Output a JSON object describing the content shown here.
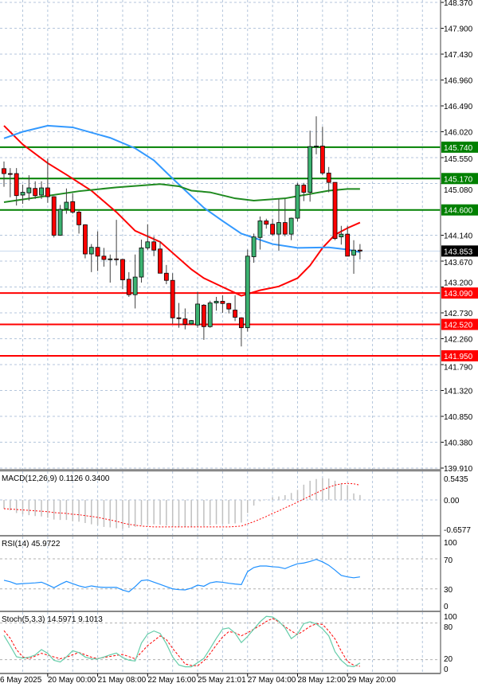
{
  "chart_data": [
    {
      "type": "candlestick",
      "panel": "price",
      "ylim": [
        139.91,
        148.37
      ],
      "grid": true,
      "price_ticks": [
        "148.370",
        "147.900",
        "147.430",
        "146.960",
        "146.490",
        "146.020",
        "145.550",
        "145.080",
        "144.140",
        "143.670",
        "143.200",
        "142.730",
        "142.260",
        "141.790",
        "141.320",
        "140.850",
        "140.380",
        "139.910"
      ],
      "candles": [
        [
          145.35,
          145.48,
          145.02,
          145.26
        ],
        [
          145.26,
          145.36,
          144.83,
          145.25
        ],
        [
          145.26,
          145.36,
          144.68,
          144.86
        ],
        [
          144.87,
          145.06,
          144.71,
          144.92
        ],
        [
          144.91,
          145.23,
          144.77,
          145.0
        ],
        [
          144.99,
          145.12,
          144.8,
          144.86
        ],
        [
          144.87,
          145.12,
          144.8,
          145.0
        ],
        [
          145.0,
          145.53,
          144.73,
          144.84
        ],
        [
          144.84,
          144.85,
          144.1,
          144.14
        ],
        [
          144.14,
          144.69,
          144.13,
          144.61
        ],
        [
          144.62,
          144.99,
          144.53,
          144.74
        ],
        [
          144.75,
          144.9,
          144.53,
          144.56
        ],
        [
          144.56,
          144.61,
          144.17,
          144.33
        ],
        [
          144.33,
          144.34,
          143.72,
          143.8
        ],
        [
          143.8,
          143.98,
          143.47,
          143.92
        ],
        [
          143.92,
          144.21,
          143.49,
          143.76
        ],
        [
          143.76,
          143.91,
          143.57,
          143.7
        ],
        [
          143.7,
          143.79,
          143.28,
          143.71
        ],
        [
          143.71,
          144.42,
          143.59,
          143.7
        ],
        [
          143.7,
          143.71,
          143.16,
          143.33
        ],
        [
          143.34,
          143.47,
          143.02,
          143.06
        ],
        [
          143.06,
          143.79,
          142.81,
          143.38
        ],
        [
          143.38,
          144.06,
          143.28,
          143.91
        ],
        [
          143.91,
          144.34,
          143.87,
          144.02
        ],
        [
          144.02,
          144.12,
          143.76,
          143.87
        ],
        [
          143.89,
          144.03,
          143.45,
          143.45
        ],
        [
          143.45,
          143.6,
          143.25,
          143.32
        ],
        [
          143.32,
          143.45,
          142.53,
          142.64
        ],
        [
          142.64,
          142.91,
          142.46,
          142.63
        ],
        [
          142.62,
          142.81,
          142.43,
          142.52
        ],
        [
          142.53,
          142.6,
          142.51,
          142.59
        ],
        [
          142.51,
          143.11,
          142.46,
          142.89
        ],
        [
          142.87,
          142.89,
          142.24,
          142.48
        ],
        [
          142.48,
          142.95,
          142.46,
          142.91
        ],
        [
          142.91,
          143.02,
          142.77,
          142.94
        ],
        [
          142.94,
          143.05,
          142.73,
          142.9
        ],
        [
          142.9,
          142.91,
          142.72,
          142.8
        ],
        [
          142.78,
          143.05,
          142.58,
          142.65
        ],
        [
          142.64,
          142.65,
          142.12,
          142.46
        ],
        [
          142.46,
          143.88,
          142.39,
          143.76
        ],
        [
          143.75,
          144.17,
          143.64,
          144.11
        ],
        [
          144.1,
          144.48,
          143.88,
          144.4
        ],
        [
          144.4,
          144.44,
          144.26,
          144.34
        ],
        [
          144.34,
          144.44,
          144.13,
          144.16
        ],
        [
          144.16,
          144.8,
          143.86,
          144.37
        ],
        [
          144.37,
          144.8,
          144.12,
          144.16
        ],
        [
          144.16,
          144.46,
          144.05,
          144.45
        ],
        [
          144.45,
          145.09,
          144.39,
          145.05
        ],
        [
          145.05,
          145.09,
          144.76,
          144.92
        ],
        [
          144.92,
          146.04,
          144.75,
          145.75
        ],
        [
          145.75,
          146.3,
          145.61,
          145.76
        ],
        [
          145.76,
          146.11,
          145.23,
          145.27
        ],
        [
          145.27,
          145.38,
          144.92,
          145.1
        ],
        [
          145.1,
          145.1,
          144.05,
          144.08
        ],
        [
          144.11,
          144.31,
          143.97,
          144.16
        ],
        [
          144.16,
          144.31,
          143.76,
          143.76
        ],
        [
          143.78,
          144.05,
          143.44,
          143.87
        ],
        [
          143.87,
          143.98,
          143.7,
          143.853
        ]
      ],
      "moving_averages": [
        {
          "color": "#ff0000",
          "points": [
            [
              0,
              146.13
            ],
            [
              3,
              145.79
            ],
            [
              7,
              145.45
            ],
            [
              10,
              145.24
            ],
            [
              14,
              144.95
            ],
            [
              18,
              144.56
            ],
            [
              21,
              144.22
            ],
            [
              25,
              144.02
            ],
            [
              30,
              143.52
            ],
            [
              32,
              143.36
            ],
            [
              35,
              143.2
            ],
            [
              38,
              143.04
            ],
            [
              41,
              143.14
            ],
            [
              44,
              143.21
            ],
            [
              47,
              143.36
            ],
            [
              49,
              143.59
            ],
            [
              51,
              143.91
            ],
            [
              53,
              144.15
            ],
            [
              55,
              144.27
            ],
            [
              57,
              144.37
            ]
          ]
        },
        {
          "color": "#3399ff",
          "points": [
            [
              0,
              145.9
            ],
            [
              3,
              146.02
            ],
            [
              7,
              146.13
            ],
            [
              11,
              146.1
            ],
            [
              17,
              145.91
            ],
            [
              21,
              145.72
            ],
            [
              24,
              145.5
            ],
            [
              27,
              145.17
            ],
            [
              30,
              144.85
            ],
            [
              32,
              144.64
            ],
            [
              35,
              144.4
            ],
            [
              38,
              144.17
            ],
            [
              43,
              143.98
            ],
            [
              47,
              143.91
            ],
            [
              52,
              143.92
            ],
            [
              55,
              143.88
            ],
            [
              57,
              143.83
            ]
          ]
        },
        {
          "color": "#1f8a1f",
          "points": [
            [
              0,
              144.74
            ],
            [
              6,
              144.84
            ],
            [
              12,
              144.94
            ],
            [
              18,
              145.01
            ],
            [
              25,
              145.07
            ],
            [
              28,
              145.03
            ],
            [
              30,
              144.95
            ],
            [
              33,
              144.92
            ],
            [
              37,
              144.81
            ],
            [
              40,
              144.77
            ],
            [
              45,
              144.81
            ],
            [
              47,
              144.85
            ],
            [
              52,
              144.95
            ],
            [
              55,
              144.98
            ],
            [
              57,
              144.98
            ]
          ]
        }
      ],
      "levels": [
        {
          "value": "145.740",
          "color": "#008000"
        },
        {
          "value": "145.170",
          "color": "#008000"
        },
        {
          "value": "144.600",
          "color": "#008000"
        },
        {
          "value": "143.090",
          "color": "#ff0000"
        },
        {
          "value": "142.520",
          "color": "#ff0000"
        },
        {
          "value": "141.950",
          "color": "#ff0000"
        }
      ],
      "current_price": "143.853",
      "bull_color": "#3cb371",
      "bear_color": "#ff0000"
    },
    {
      "type": "bar",
      "panel": "macd",
      "title": "MACD(12,26,9) 0.1126 0.3400",
      "ylim": [
        -0.6577,
        0.5435
      ],
      "ticks": [
        "0.5435",
        "0.00",
        "-0.6577"
      ],
      "histogram": [
        -0.2,
        -0.24,
        -0.3,
        -0.33,
        -0.35,
        -0.37,
        -0.38,
        -0.41,
        -0.45,
        -0.46,
        -0.46,
        -0.49,
        -0.5,
        -0.53,
        -0.56,
        -0.58,
        -0.62,
        -0.63,
        -0.65,
        -0.66,
        -0.64,
        -0.62,
        -0.58,
        -0.56,
        -0.56,
        -0.57,
        -0.59,
        -0.62,
        -0.62,
        -0.62,
        -0.62,
        -0.61,
        -0.6,
        -0.58,
        -0.56,
        -0.55,
        -0.55,
        -0.54,
        -0.52,
        -0.3,
        -0.13,
        -0.03,
        0.01,
        0.06,
        0.08,
        0.11,
        0.16,
        0.23,
        0.35,
        0.44,
        0.48,
        0.5,
        0.49,
        0.44,
        0.38,
        0.34,
        0.15,
        0.1126
      ],
      "signal": [
        -0.2,
        -0.21,
        -0.22,
        -0.23,
        -0.24,
        -0.25,
        -0.26,
        -0.27,
        -0.29,
        -0.3,
        -0.31,
        -0.33,
        -0.34,
        -0.36,
        -0.38,
        -0.4,
        -0.43,
        -0.46,
        -0.49,
        -0.53,
        -0.56,
        -0.58,
        -0.6,
        -0.61,
        -0.62,
        -0.62,
        -0.62,
        -0.62,
        -0.62,
        -0.62,
        -0.62,
        -0.62,
        -0.62,
        -0.62,
        -0.62,
        -0.62,
        -0.62,
        -0.61,
        -0.6,
        -0.55,
        -0.5,
        -0.44,
        -0.38,
        -0.31,
        -0.25,
        -0.18,
        -0.12,
        -0.05,
        0.02,
        0.09,
        0.16,
        0.23,
        0.29,
        0.34,
        0.37,
        0.38,
        0.37,
        0.34
      ],
      "histogram_color": "#c0c0c0",
      "signal_color": "#ff0000"
    },
    {
      "type": "line",
      "panel": "rsi",
      "title": "RSI(14) 45.9722",
      "ylim": [
        0,
        100
      ],
      "ticks": [
        "100",
        "70",
        "30",
        "0"
      ],
      "levels": [
        70,
        30
      ],
      "values": [
        41.5,
        39.5,
        36.4,
        37,
        37.5,
        38,
        38.9,
        35.5,
        31.5,
        36,
        40,
        37,
        34,
        32,
        34,
        32.5,
        32,
        32,
        32,
        28.5,
        26,
        33,
        41,
        42,
        39,
        36,
        33,
        30,
        29,
        28.7,
        31,
        35,
        33.5,
        38,
        39.5,
        38.8,
        37.5,
        36.5,
        35.7,
        53,
        58.5,
        60.5,
        60.5,
        59.5,
        59,
        57,
        60.5,
        63.5,
        64.5,
        66.5,
        69.3,
        66,
        61.5,
        55,
        48,
        46,
        44.8,
        45.97
      ],
      "color": "#1e90ff"
    },
    {
      "type": "line",
      "panel": "stochastic",
      "title": "Stoch(5,3,3) 14.5971 9.1013",
      "ylim": [
        0,
        100
      ],
      "ticks": [
        "100",
        "80",
        "20",
        "0"
      ],
      "levels": [
        80,
        20
      ],
      "k": [
        59.8,
        42.7,
        24.8,
        22.5,
        24,
        27.7,
        36.5,
        30.3,
        19,
        16.2,
        24.5,
        34.6,
        31.5,
        24.4,
        21.3,
        21.3,
        24.3,
        28,
        30.8,
        23.4,
        19.1,
        17.8,
        47,
        62,
        67,
        63,
        46,
        24.5,
        11.3,
        8.3,
        8.3,
        15,
        22,
        38,
        55,
        70,
        72,
        63.5,
        48,
        58,
        70,
        82,
        90.9,
        90,
        83,
        72,
        54.5,
        62,
        79,
        82,
        78.5,
        70.5,
        59,
        33,
        19,
        10,
        8.5,
        14.6
      ],
      "d": [
        67.5,
        55,
        36.5,
        24.5,
        21.5,
        26,
        30.5,
        27.5,
        24.5,
        21.5,
        24,
        28,
        31.8,
        28,
        24,
        21.8,
        23.6,
        25.4,
        27,
        28.6,
        25,
        21.5,
        32,
        43,
        51,
        59,
        53,
        38.5,
        26,
        13,
        10.4,
        10,
        18,
        30,
        44,
        57,
        66,
        64,
        59,
        64,
        70,
        76,
        82.5,
        87.5,
        82,
        74,
        67,
        61,
        67.5,
        74.5,
        78.8,
        77.8,
        67,
        54,
        34,
        17,
        11,
        9.1
      ],
      "k_color": "#66cdaa",
      "d_color": "#ff0000"
    }
  ],
  "time_axis": {
    "labels": [
      "6 May 2025",
      "20 May 00:00",
      "21 May 08:00",
      "22 May 16:00",
      "25 May 21:01",
      "27 May 04:00",
      "28 May 12:00",
      "29 May 20:00"
    ]
  },
  "colors": {
    "grid": "#b4c6dc",
    "axis": "#808080"
  }
}
